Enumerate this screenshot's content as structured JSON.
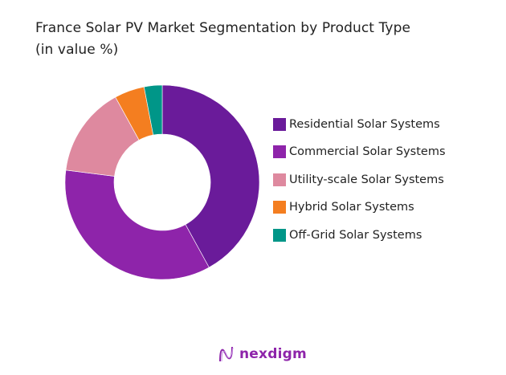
{
  "chart_data": {
    "type": "pie",
    "variant": "donut",
    "title": "France Solar PV Market Segmentation by Product Type (in value %)",
    "title_lines": [
      "France Solar PV Market Segmentation by Product Type",
      "(in value %)"
    ],
    "legend_position": "right",
    "categories": [
      "Residential Solar Systems",
      "Commercial Solar Systems",
      "Utility-scale Solar Systems",
      "Hybrid Solar Systems",
      "Off-Grid Solar Systems"
    ],
    "values": [
      42,
      35,
      15,
      5,
      3
    ],
    "colors": [
      "#6a1b9a",
      "#8e24aa",
      "#de899f",
      "#f47e20",
      "#009688"
    ]
  },
  "branding": {
    "logo_text": "nexdigm",
    "logo_color": "#8e24aa"
  }
}
